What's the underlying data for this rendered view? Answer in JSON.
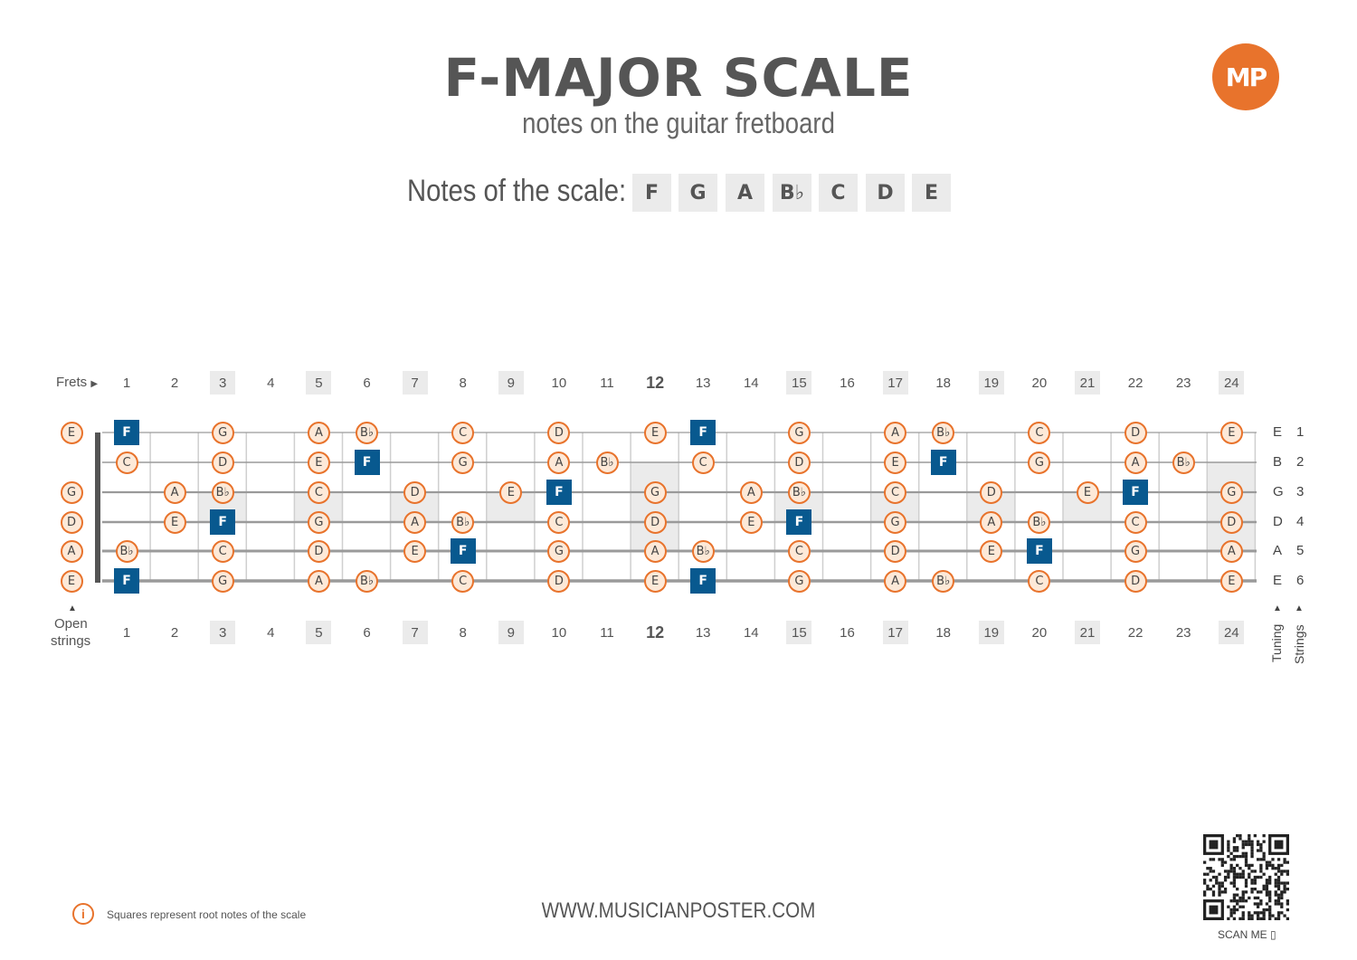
{
  "header": {
    "title": "F-MAJOR SCALE",
    "subtitle": "notes on the guitar fretboard",
    "logo_text": "MP",
    "notes_label": "Notes of the scale:",
    "scale_notes": [
      "F",
      "G",
      "A",
      "B♭",
      "C",
      "D",
      "E"
    ]
  },
  "fretboard": {
    "frets_label": "Frets",
    "fret_numbers": [
      "1",
      "2",
      "3",
      "4",
      "5",
      "6",
      "7",
      "8",
      "9",
      "10",
      "11",
      "12",
      "13",
      "14",
      "15",
      "16",
      "17",
      "18",
      "19",
      "20",
      "21",
      "22",
      "23",
      "24"
    ],
    "marked_frets": [
      "3",
      "5",
      "7",
      "9",
      "12",
      "15",
      "17",
      "19",
      "21",
      "24"
    ],
    "open_label_line1": "Open",
    "open_label_line2": "strings",
    "tuning_label": "Tuning",
    "strings_label": "Strings",
    "strings": [
      {
        "tuning": "E",
        "number": "1",
        "open": "E",
        "frets": {
          "1": "F",
          "3": "G",
          "5": "A",
          "6": "B♭",
          "8": "C",
          "10": "D",
          "12": "E",
          "13": "F",
          "15": "G",
          "17": "A",
          "18": "B♭",
          "20": "C",
          "22": "D",
          "24": "E"
        }
      },
      {
        "tuning": "B",
        "number": "2",
        "open": "",
        "frets": {
          "1": "C",
          "3": "D",
          "5": "E",
          "6": "F",
          "8": "G",
          "10": "A",
          "11": "B♭",
          "13": "C",
          "15": "D",
          "17": "E",
          "18": "F",
          "20": "G",
          "22": "A",
          "23": "B♭"
        }
      },
      {
        "tuning": "G",
        "number": "3",
        "open": "G",
        "frets": {
          "2": "A",
          "3": "B♭",
          "5": "C",
          "7": "D",
          "9": "E",
          "10": "F",
          "12": "G",
          "14": "A",
          "15": "B♭",
          "17": "C",
          "19": "D",
          "21": "E",
          "22": "F",
          "24": "G"
        }
      },
      {
        "tuning": "D",
        "number": "4",
        "open": "D",
        "frets": {
          "2": "E",
          "3": "F",
          "5": "G",
          "7": "A",
          "8": "B♭",
          "10": "C",
          "12": "D",
          "14": "E",
          "15": "F",
          "17": "G",
          "19": "A",
          "20": "B♭",
          "22": "C",
          "24": "D"
        }
      },
      {
        "tuning": "A",
        "number": "5",
        "open": "A",
        "frets": {
          "1": "B♭",
          "3": "C",
          "5": "D",
          "7": "E",
          "8": "F",
          "10": "G",
          "12": "A",
          "13": "B♭",
          "15": "C",
          "17": "D",
          "19": "E",
          "20": "F",
          "22": "G",
          "24": "A"
        }
      },
      {
        "tuning": "E",
        "number": "6",
        "open": "E",
        "frets": {
          "1": "F",
          "3": "G",
          "5": "A",
          "6": "B♭",
          "8": "C",
          "10": "D",
          "12": "E",
          "13": "F",
          "15": "G",
          "17": "A",
          "18": "B♭",
          "20": "C",
          "22": "D",
          "24": "E"
        }
      }
    ],
    "root_note": "F"
  },
  "colors": {
    "accent": "#e8732c",
    "root": "#08598f",
    "circle_fill": "#fde9d8",
    "highlight": "#ebebeb"
  },
  "footer": {
    "info_text": "Squares represent root notes of the scale",
    "url": "WWW.MUSICIANPOSTER.COM",
    "scan_label": "SCAN ME"
  }
}
